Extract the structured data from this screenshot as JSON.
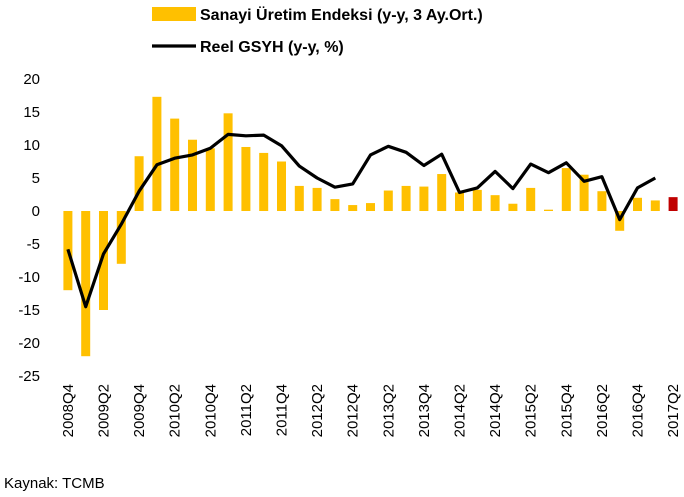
{
  "chart_data": {
    "type": "bar_line",
    "categories": [
      "2008Q4",
      null,
      "2009Q2",
      null,
      "2009Q4",
      null,
      "2010Q2",
      null,
      "2010Q4",
      null,
      "2011Q2",
      null,
      "2011Q4",
      null,
      "2012Q2",
      null,
      "2012Q4",
      null,
      "2013Q2",
      null,
      "2013Q4",
      null,
      "2014Q2",
      null,
      "2014Q4",
      null,
      "2015Q2",
      null,
      "2015Q4",
      null,
      "2016Q2",
      null,
      "2016Q4",
      null,
      "2017Q2"
    ],
    "series": [
      {
        "name": "Sanayi Üretim Endeksi (y-y, 3 Ay.Ort.)",
        "kind": "bar",
        "color": "#FFC000",
        "colors": [
          "#FFC000",
          "#FFC000",
          "#FFC000",
          "#FFC000",
          "#FFC000",
          "#FFC000",
          "#FFC000",
          "#FFC000",
          "#FFC000",
          "#FFC000",
          "#FFC000",
          "#FFC000",
          "#FFC000",
          "#FFC000",
          "#FFC000",
          "#FFC000",
          "#FFC000",
          "#FFC000",
          "#FFC000",
          "#FFC000",
          "#FFC000",
          "#FFC000",
          "#FFC000",
          "#FFC000",
          "#FFC000",
          "#FFC000",
          "#FFC000",
          "#FFC000",
          "#FFC000",
          "#FFC000",
          "#FFC000",
          "#FFC000",
          "#FFC000",
          "#FFC000",
          "#C00000"
        ],
        "values": [
          -12,
          -22,
          -15,
          -8,
          8.3,
          17.3,
          14,
          10.8,
          9.5,
          14.8,
          9.7,
          8.8,
          7.5,
          3.8,
          3.5,
          1.8,
          0.9,
          1.2,
          3.1,
          3.8,
          3.7,
          5.6,
          2.8,
          3.2,
          2.4,
          1.1,
          3.5,
          0.2,
          6.5,
          5.5,
          3,
          -3,
          2,
          1.6,
          2.1
        ]
      },
      {
        "name": "Reel GSYH (y-y, %)",
        "kind": "line",
        "color": "#000000",
        "values": [
          -5.8,
          -14.5,
          -6.5,
          -2,
          3,
          7,
          8,
          8.5,
          9.5,
          11.6,
          11.4,
          11.5,
          9.9,
          6.8,
          5,
          3.6,
          4.1,
          8.5,
          9.8,
          8.9,
          6.9,
          8.6,
          2.8,
          3.5,
          6,
          3.4,
          7.1,
          5.8,
          7.3,
          4.5,
          5.2,
          -1.3,
          3.5,
          5,
          null
        ]
      }
    ],
    "ylim": [
      -25,
      20
    ],
    "yticks": [
      -25,
      -20,
      -15,
      -10,
      -5,
      0,
      5,
      10,
      15,
      20
    ],
    "grid": false,
    "source": "Kaynak:  TCMB"
  }
}
